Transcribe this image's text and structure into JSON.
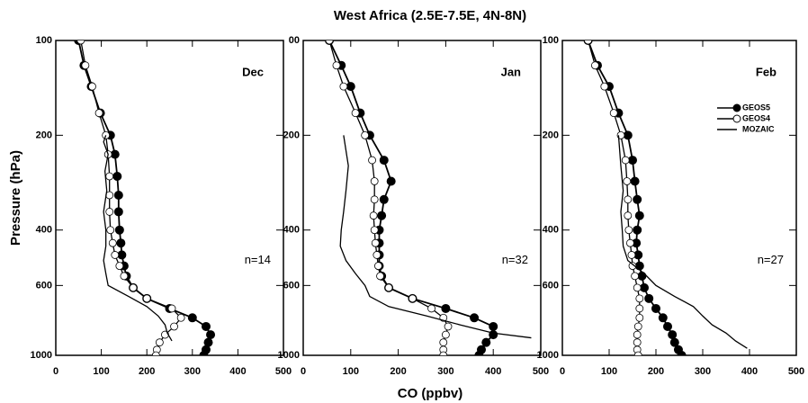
{
  "figure": {
    "title": "West Africa (2.5E-7.5E, 4N-8N)",
    "xlabel": "CO (ppbv)",
    "ylabel": "Pressure (hPa)"
  },
  "chart_data": [
    {
      "type": "line",
      "title": "Dec",
      "annotation": "n=14",
      "xlim": [
        0,
        500
      ],
      "ylim": [
        100,
        1000
      ],
      "ylog": true,
      "yinvert": true,
      "xticks": [
        0,
        100,
        200,
        300,
        400,
        500
      ],
      "yticks": [
        100,
        200,
        400,
        600,
        1000
      ],
      "legend": false,
      "series": [
        {
          "name": "GEOS5",
          "color": "#000000",
          "marker": "filled",
          "x": [
            50,
            62,
            78,
            98,
            120,
            130,
            135,
            138,
            138,
            140,
            143,
            145,
            150,
            155,
            170,
            200,
            250,
            300,
            330,
            340,
            335,
            330,
            325
          ],
          "y": [
            100,
            120,
            140,
            170,
            200,
            230,
            270,
            310,
            350,
            400,
            440,
            480,
            520,
            560,
            610,
            660,
            710,
            760,
            810,
            860,
            910,
            960,
            1000
          ]
        },
        {
          "name": "GEOS4",
          "color": "#000000",
          "marker": "open",
          "x": [
            55,
            65,
            80,
            95,
            110,
            115,
            118,
            118,
            118,
            120,
            125,
            130,
            140,
            150,
            170,
            200,
            255,
            275,
            260,
            240,
            228,
            222,
            220
          ],
          "y": [
            100,
            120,
            140,
            170,
            200,
            230,
            270,
            310,
            350,
            400,
            440,
            480,
            520,
            560,
            610,
            660,
            710,
            760,
            810,
            860,
            910,
            960,
            1000
          ]
        },
        {
          "name": "MOZAIC",
          "color": "#000000",
          "marker": "none",
          "x": [
            110,
            105,
            115,
            108,
            112,
            105,
            110,
            110,
            105,
            110,
            115,
            160,
            200,
            225,
            240,
            245,
            255
          ],
          "y": [
            200,
            210,
            230,
            260,
            300,
            350,
            400,
            450,
            500,
            550,
            600,
            650,
            700,
            750,
            800,
            850,
            900
          ]
        }
      ]
    },
    {
      "type": "line",
      "title": "Jan",
      "annotation": "n=32",
      "xlim": [
        0,
        500
      ],
      "ylim": [
        100,
        1000
      ],
      "ylog": true,
      "yinvert": true,
      "xticks": [
        0,
        100,
        200,
        300,
        400,
        500
      ],
      "yticks": [
        {
          "value": 100,
          "label": "00"
        },
        200,
        400,
        600,
        1000
      ],
      "legend": false,
      "series": [
        {
          "name": "GEOS5",
          "color": "#000000",
          "marker": "filled",
          "x": [
            55,
            80,
            100,
            120,
            140,
            170,
            185,
            170,
            165,
            160,
            160,
            160,
            160,
            165,
            180,
            230,
            300,
            360,
            400,
            400,
            385,
            375,
            370
          ],
          "y": [
            100,
            120,
            140,
            170,
            200,
            240,
            280,
            320,
            360,
            400,
            440,
            480,
            520,
            560,
            610,
            660,
            710,
            760,
            810,
            860,
            910,
            960,
            1000
          ]
        },
        {
          "name": "GEOS4",
          "color": "#000000",
          "marker": "open",
          "x": [
            55,
            70,
            85,
            110,
            130,
            145,
            150,
            150,
            148,
            150,
            152,
            155,
            158,
            162,
            180,
            230,
            270,
            295,
            305,
            300,
            295,
            295,
            295
          ],
          "y": [
            100,
            120,
            140,
            170,
            200,
            240,
            280,
            320,
            360,
            400,
            440,
            480,
            520,
            560,
            610,
            660,
            710,
            760,
            810,
            860,
            910,
            960,
            1000
          ]
        },
        {
          "name": "MOZAIC",
          "color": "#000000",
          "marker": "none",
          "x": [
            85,
            95,
            90,
            85,
            80,
            78,
            90,
            110,
            130,
            140,
            180,
            260,
            330,
            400,
            480
          ],
          "y": [
            200,
            250,
            300,
            350,
            400,
            450,
            500,
            550,
            600,
            650,
            700,
            750,
            800,
            850,
            880
          ]
        }
      ]
    },
    {
      "type": "line",
      "title": "Feb",
      "annotation": "n=27",
      "xlim": [
        0,
        500
      ],
      "ylim": [
        100,
        1000
      ],
      "ylog": true,
      "yinvert": true,
      "xticks": [
        0,
        100,
        200,
        300,
        400,
        500
      ],
      "yticks": [
        100,
        200,
        400,
        600,
        1000
      ],
      "legend": true,
      "series": [
        {
          "name": "GEOS5",
          "color": "#000000",
          "marker": "filled",
          "x": [
            55,
            75,
            100,
            120,
            140,
            150,
            155,
            160,
            165,
            160,
            158,
            162,
            165,
            170,
            175,
            185,
            200,
            215,
            225,
            235,
            240,
            248,
            255
          ],
          "y": [
            100,
            120,
            140,
            170,
            200,
            240,
            280,
            320,
            360,
            400,
            440,
            480,
            520,
            560,
            610,
            660,
            710,
            760,
            810,
            860,
            910,
            960,
            1000
          ]
        },
        {
          "name": "GEOS4",
          "color": "#000000",
          "marker": "open",
          "x": [
            55,
            70,
            90,
            110,
            125,
            135,
            138,
            140,
            140,
            142,
            145,
            148,
            150,
            155,
            160,
            165,
            165,
            165,
            162,
            160,
            160,
            160,
            162
          ],
          "y": [
            100,
            120,
            140,
            170,
            200,
            240,
            280,
            320,
            360,
            400,
            440,
            480,
            520,
            560,
            610,
            660,
            710,
            760,
            810,
            860,
            910,
            960,
            1000
          ]
        },
        {
          "name": "MOZAIC",
          "color": "#000000",
          "marker": "none",
          "x": [
            120,
            125,
            130,
            125,
            128,
            130,
            140,
            175,
            200,
            240,
            280,
            300,
            320,
            350,
            370,
            395
          ],
          "y": [
            200,
            250,
            300,
            350,
            400,
            450,
            500,
            550,
            600,
            650,
            700,
            750,
            800,
            850,
            900,
            950
          ]
        }
      ]
    }
  ]
}
